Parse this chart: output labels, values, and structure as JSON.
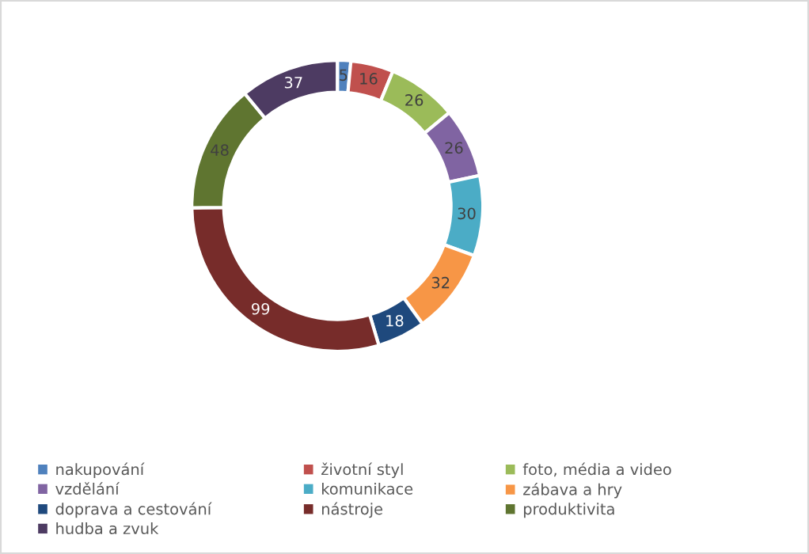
{
  "chart_data": {
    "type": "donut",
    "categories": [
      "nakupování",
      "životní styl",
      "foto, média a video",
      "vzdělání",
      "komunikace",
      "zábava a hry",
      "doprava a cestování",
      "nástroje",
      "produktivita",
      "hudba a zvuk"
    ],
    "values": [
      5,
      16,
      26,
      26,
      30,
      32,
      18,
      99,
      48,
      37
    ],
    "colors": [
      "#4f81bd",
      "#c0504d",
      "#9bbb59",
      "#8064a2",
      "#4bacc6",
      "#f79646",
      "#1f497d",
      "#772c2a",
      "#5f7530",
      "#4d3b62"
    ],
    "data_labels": true,
    "legend": "bottom"
  }
}
